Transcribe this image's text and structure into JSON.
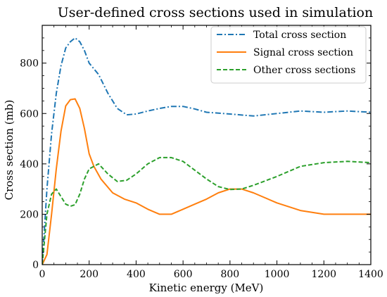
{
  "chart_data": {
    "type": "line",
    "title": "User-defined cross sections used in simulation",
    "xlabel": "Kinetic energy (MeV)",
    "ylabel": "Cross section (mb)",
    "xlim": [
      0,
      1400
    ],
    "ylim": [
      0,
      950
    ],
    "xticks": [
      0,
      200,
      400,
      600,
      800,
      1000,
      1200,
      1400
    ],
    "yticks": [
      0,
      200,
      400,
      600,
      800
    ],
    "grid": false,
    "legend": "top-right",
    "series": [
      {
        "name": "Total cross section",
        "color": "#1f77b4",
        "linestyle": "dashdot",
        "x": [
          0,
          20,
          40,
          60,
          80,
          100,
          120,
          140,
          160,
          180,
          200,
          240,
          280,
          320,
          360,
          400,
          450,
          500,
          550,
          600,
          650,
          700,
          800,
          900,
          1000,
          1100,
          1200,
          1300,
          1400
        ],
        "y": [
          0,
          300,
          520,
          680,
          790,
          860,
          885,
          900,
          885,
          850,
          800,
          755,
          680,
          620,
          595,
          598,
          610,
          620,
          628,
          628,
          618,
          605,
          598,
          590,
          600,
          610,
          605,
          610,
          605
        ]
      },
      {
        "name": "Signal cross section",
        "color": "#ff7f0e",
        "linestyle": "solid",
        "x": [
          0,
          20,
          40,
          60,
          80,
          100,
          120,
          140,
          160,
          180,
          200,
          220,
          250,
          300,
          350,
          400,
          450,
          500,
          550,
          600,
          650,
          700,
          750,
          800,
          850,
          900,
          1000,
          1100,
          1200,
          1300,
          1400
        ],
        "y": [
          0,
          40,
          200,
          380,
          530,
          630,
          655,
          658,
          620,
          540,
          440,
          390,
          340,
          285,
          260,
          245,
          220,
          200,
          200,
          220,
          240,
          260,
          285,
          300,
          300,
          285,
          245,
          215,
          200,
          200,
          200
        ]
      },
      {
        "name": "Other cross sections",
        "color": "#2ca02c",
        "linestyle": "dashed",
        "x": [
          0,
          20,
          40,
          60,
          80,
          100,
          120,
          140,
          160,
          180,
          200,
          240,
          280,
          320,
          360,
          400,
          450,
          500,
          550,
          600,
          650,
          700,
          750,
          800,
          850,
          900,
          1000,
          1100,
          1200,
          1300,
          1400
        ],
        "y": [
          0,
          200,
          280,
          300,
          270,
          240,
          232,
          238,
          280,
          340,
          380,
          400,
          360,
          330,
          335,
          360,
          400,
          425,
          425,
          410,
          375,
          340,
          310,
          298,
          300,
          315,
          350,
          390,
          405,
          410,
          405
        ]
      }
    ]
  }
}
